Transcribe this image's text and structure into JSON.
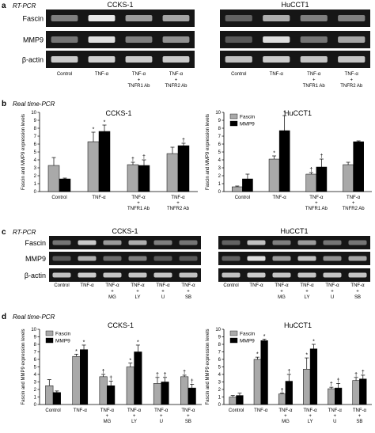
{
  "colors": {
    "gel_bg": "#161616",
    "fascin_bar": "#a9a9a9",
    "mmp9_bar": "#000000"
  },
  "panel_a": {
    "letter": "a",
    "method": "RT-PCR",
    "gels": [
      {
        "title": "CCKS-1",
        "row_labels": [
          "Fascin",
          "MMP9",
          "β-actin"
        ],
        "lanes": [
          [
            "Control"
          ],
          [
            "TNF-α"
          ],
          [
            "TNF-α",
            "+",
            "TNFR1 Ab"
          ],
          [
            "TNF-α",
            "+",
            "TNFR2 Ab"
          ]
        ],
        "intensity": [
          [
            0.35,
            0.9,
            0.5,
            0.55
          ],
          [
            0.3,
            0.85,
            0.35,
            0.45
          ],
          [
            0.75,
            0.78,
            0.75,
            0.75
          ]
        ]
      },
      {
        "title": "HuCCT1",
        "row_labels": [],
        "lanes": [
          [
            "Control"
          ],
          [
            "TNF-α"
          ],
          [
            "TNF-α",
            "+",
            "TNFR1 Ab"
          ],
          [
            "TNF-α",
            "+",
            "TNFR2 Ab"
          ]
        ],
        "intensity": [
          [
            0.2,
            0.6,
            0.35,
            0.35
          ],
          [
            0.15,
            0.85,
            0.3,
            0.55
          ],
          [
            0.7,
            0.75,
            0.72,
            0.72
          ]
        ]
      }
    ]
  },
  "panel_b": {
    "letter": "b",
    "method": "Real time-PCR",
    "chart_data": [
      {
        "type": "bar",
        "title": "CCKS-1",
        "ylabel": "Fascin and MMP9 expression levels",
        "ylim": [
          0,
          10
        ],
        "yticks": [
          "0",
          "1",
          "2",
          "3",
          "4",
          "5",
          "6",
          "7",
          "8",
          "9",
          "10"
        ],
        "categories": [
          [
            "Control"
          ],
          [
            "TNF-α"
          ],
          [
            "TNF-α",
            "+",
            "TNFR1 Ab"
          ],
          [
            "TNF-α",
            "+",
            "TNFR2 Ab"
          ]
        ],
        "series": [
          {
            "name": "",
            "values": [
              3.3,
              6.3,
              3.4,
              4.8
            ],
            "errors": [
              1.0,
              1.2,
              0.3,
              0.8
            ],
            "marks": [
              "",
              "*",
              "†",
              ""
            ]
          },
          {
            "name": "",
            "values": [
              1.6,
              7.6,
              3.3,
              5.8
            ],
            "errors": [
              0.1,
              0.8,
              0.7,
              0.3
            ],
            "marks": [
              "",
              "*",
              "†",
              "†"
            ]
          }
        ],
        "legend": "none"
      },
      {
        "type": "bar",
        "title": "HuCCT1",
        "ylabel": "Fascin and MMP9 expression levels",
        "ylim": [
          0,
          10
        ],
        "yticks": [
          "0",
          "1",
          "2",
          "3",
          "4",
          "5",
          "6",
          "7",
          "8",
          "9",
          "10"
        ],
        "categories": [
          [
            "Control"
          ],
          [
            "TNF-α"
          ],
          [
            "TNF-α",
            "+",
            "TNFR1 Ab"
          ],
          [
            "TNF-α",
            "+",
            "TNFR2 Ab"
          ]
        ],
        "series": [
          {
            "name": "Fascin",
            "values": [
              0.6,
              4.1,
              2.2,
              3.4
            ],
            "errors": [
              0.1,
              0.4,
              0.2,
              0.3
            ],
            "marks": [
              "",
              "*",
              "†",
              ""
            ]
          },
          {
            "name": "MMP9",
            "values": [
              1.6,
              7.7,
              3.1,
              6.3
            ],
            "errors": [
              0.6,
              1.9,
              1.0,
              0.1
            ],
            "marks": [
              "",
              "*",
              "†",
              ""
            ]
          }
        ],
        "legend": "top-left"
      }
    ]
  },
  "panel_c": {
    "letter": "c",
    "method": "RT-PCR",
    "gels": [
      {
        "title": "CCKS-1",
        "row_labels": [
          "Fascin",
          "MMP9",
          "β-actin"
        ],
        "lanes": [
          [
            "Control"
          ],
          [
            "TNF-α"
          ],
          [
            "TNF-α",
            "+",
            "MG"
          ],
          [
            "TNF-α",
            "+",
            "LY"
          ],
          [
            "TNF-α",
            "+",
            "U"
          ],
          [
            "TNF-α",
            "+",
            "SB"
          ]
        ],
        "intensity": [
          [
            0.3,
            0.75,
            0.5,
            0.6,
            0.35,
            0.3
          ],
          [
            0.15,
            0.6,
            0.25,
            0.35,
            0.15,
            0.15
          ],
          [
            0.7,
            0.75,
            0.72,
            0.72,
            0.72,
            0.7
          ]
        ]
      },
      {
        "title": "HuCCT1",
        "row_labels": [],
        "lanes": [
          [
            "Control"
          ],
          [
            "TNF-α"
          ],
          [
            "TNF-α",
            "+",
            "MG"
          ],
          [
            "TNF-α",
            "+",
            "LY"
          ],
          [
            "TNF-α",
            "+",
            "U"
          ],
          [
            "TNF-α",
            "+",
            "SB"
          ]
        ],
        "intensity": [
          [
            0.2,
            0.7,
            0.35,
            0.5,
            0.3,
            0.3
          ],
          [
            0.2,
            0.85,
            0.5,
            0.7,
            0.45,
            0.55
          ],
          [
            0.7,
            0.75,
            0.72,
            0.72,
            0.72,
            0.72
          ]
        ]
      }
    ]
  },
  "panel_d": {
    "letter": "d",
    "method": "Real time-PCR",
    "chart_data": [
      {
        "type": "bar",
        "title": "CCKS-1",
        "ylabel": "Fascin and MMP9 expression levels",
        "ylim": [
          0,
          10
        ],
        "yticks": [
          "0",
          "1",
          "2",
          "3",
          "4",
          "5",
          "6",
          "7",
          "8",
          "9",
          "10"
        ],
        "categories": [
          [
            "Control"
          ],
          [
            "TNF-α"
          ],
          [
            "TNF-α",
            "+",
            "MG"
          ],
          [
            "TNF-α",
            "+",
            "LY"
          ],
          [
            "TNF-α",
            "+",
            "U"
          ],
          [
            "TNF-α",
            "+",
            "SB"
          ]
        ],
        "series": [
          {
            "name": "Fascin",
            "values": [
              2.5,
              6.4,
              3.7,
              5.0,
              2.8,
              3.7
            ],
            "errors": [
              0.8,
              0.3,
              0.3,
              0.5,
              0.8,
              0.2
            ],
            "marks": [
              "",
              "*",
              "†",
              "*",
              "†",
              "†"
            ]
          },
          {
            "name": "MMP9",
            "values": [
              1.6,
              7.3,
              2.5,
              7.0,
              3.0,
              2.2
            ],
            "errors": [
              0.2,
              0.6,
              0.6,
              0.9,
              0.6,
              0.5
            ],
            "marks": [
              "",
              "*",
              "†",
              "*",
              "†",
              "†"
            ]
          }
        ],
        "legend": "top-left"
      },
      {
        "type": "bar",
        "title": "HuCCT1",
        "ylabel": "Fascin and MMP9 expression levels",
        "ylim": [
          0,
          10
        ],
        "yticks": [
          "0",
          "1",
          "2",
          "3",
          "4",
          "5",
          "6",
          "7",
          "8",
          "9",
          "10"
        ],
        "categories": [
          [
            "Control"
          ],
          [
            "TNF-α"
          ],
          [
            "TNF-α",
            "+",
            "MG"
          ],
          [
            "TNF-α",
            "+",
            "LY"
          ],
          [
            "TNF-α",
            "+",
            "U"
          ],
          [
            "TNF-α",
            "+",
            "SB"
          ]
        ],
        "series": [
          {
            "name": "Fascin",
            "values": [
              1.0,
              6.0,
              1.4,
              4.7,
              2.1,
              3.2
            ],
            "errors": [
              0.2,
              0.3,
              0.1,
              1.5,
              0.2,
              0.4
            ],
            "marks": [
              "",
              "*",
              "†",
              "*",
              "†",
              "†"
            ]
          },
          {
            "name": "MMP9",
            "values": [
              1.2,
              8.5,
              3.1,
              7.4,
              2.2,
              3.4
            ],
            "errors": [
              0.3,
              0.2,
              0.9,
              0.6,
              0.6,
              0.5
            ],
            "marks": [
              "",
              "*",
              "†",
              "*",
              "†",
              "†"
            ]
          }
        ],
        "legend": "top-left"
      }
    ]
  }
}
